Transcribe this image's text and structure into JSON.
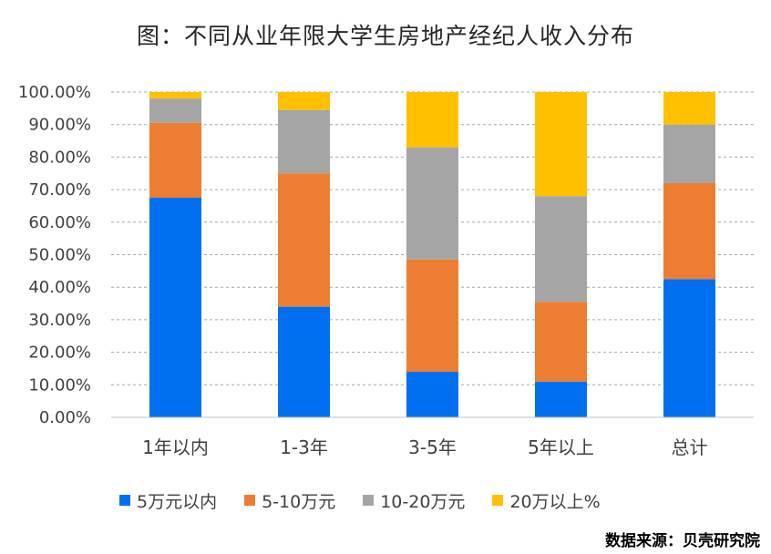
{
  "chart_data": {
    "type": "bar",
    "stacked": true,
    "title": "图：不同从业年限大学生房地产经纪人收入分布",
    "categories": [
      "1年以内",
      "1-3年",
      "3-5年",
      "5年以上",
      "总计"
    ],
    "series": [
      {
        "name": "5万元以内",
        "color": "#0070f0",
        "values": [
          67.5,
          34.0,
          14.0,
          11.0,
          42.5
        ]
      },
      {
        "name": "5-10万元",
        "color": "#ed7d31",
        "values": [
          23.0,
          41.0,
          34.5,
          24.5,
          29.5
        ]
      },
      {
        "name": "10-20万元",
        "color": "#a5a5a5",
        "values": [
          7.5,
          19.5,
          34.5,
          32.5,
          18.0
        ]
      },
      {
        "name": "20万以上%",
        "color": "#ffc000",
        "values": [
          2.0,
          5.5,
          17.0,
          32.0,
          10.0
        ]
      }
    ],
    "ylim": [
      0,
      100
    ],
    "yticks": [
      "0.00%",
      "10.00%",
      "20.00%",
      "30.00%",
      "40.00%",
      "50.00%",
      "60.00%",
      "70.00%",
      "80.00%",
      "90.00%",
      "100.00%"
    ],
    "grid": true,
    "legend_position": "bottom"
  },
  "source": "数据来源：贝壳研究院"
}
